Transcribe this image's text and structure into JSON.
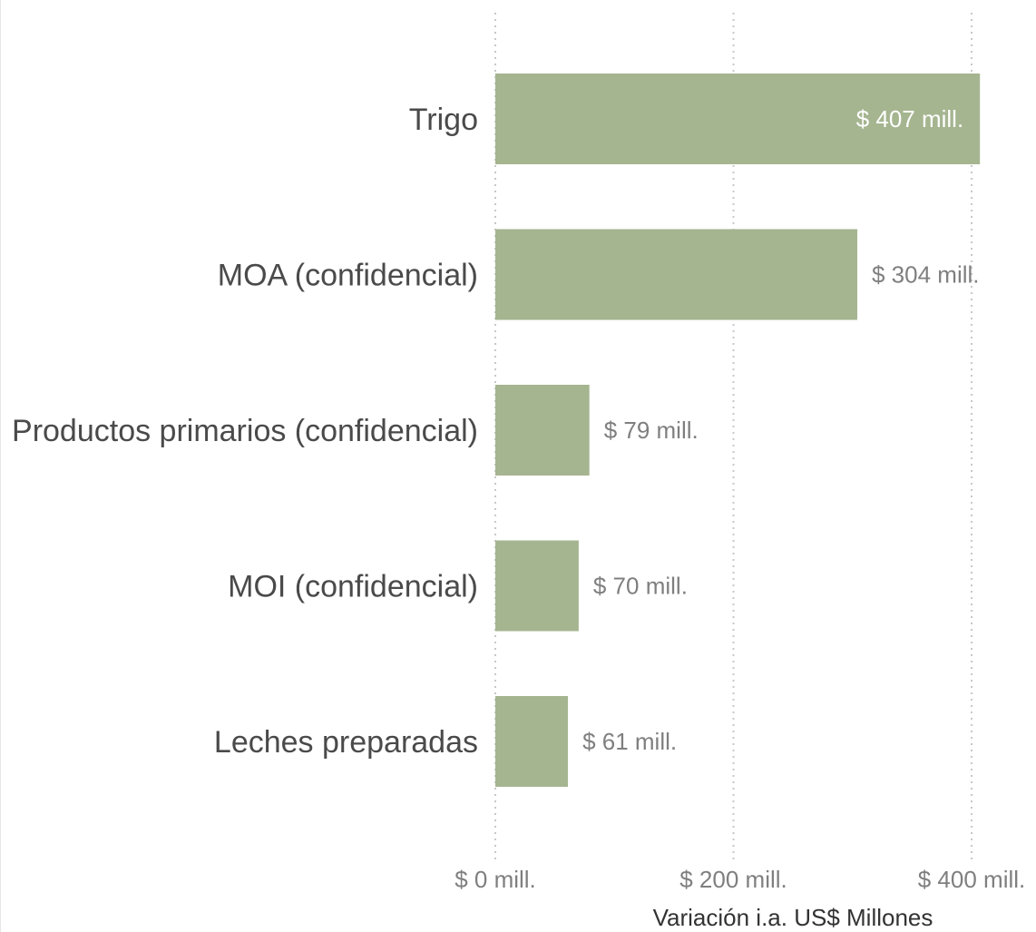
{
  "chart_data": {
    "type": "bar",
    "orientation": "horizontal",
    "categories": [
      "Trigo",
      "MOA (confidencial)",
      "Productos primarios (confidencial)",
      "MOI (confidencial)",
      "Leches preparadas"
    ],
    "values": [
      407,
      304,
      79,
      70,
      61
    ],
    "data_labels": [
      "$ 407 mill.",
      "$ 304 mill.",
      "$ 79 mill.",
      "$ 70 mill.",
      "$ 61 mill."
    ],
    "xlim": [
      0,
      400
    ],
    "xticks": [
      0,
      200,
      400
    ],
    "xtick_labels": [
      "$ 0 mill.",
      "$ 200 mill.",
      "$ 400 mill."
    ],
    "xlabel": "Variación i.a. US$ Millones",
    "ylabel": "",
    "title": "",
    "grid": "vertical-dotted",
    "legend": "none",
    "colors": {
      "bar": "#a5b590",
      "grid": "#c8c8c8",
      "label_inside": "#ffffff",
      "label_outside": "#7f7f7f"
    }
  }
}
